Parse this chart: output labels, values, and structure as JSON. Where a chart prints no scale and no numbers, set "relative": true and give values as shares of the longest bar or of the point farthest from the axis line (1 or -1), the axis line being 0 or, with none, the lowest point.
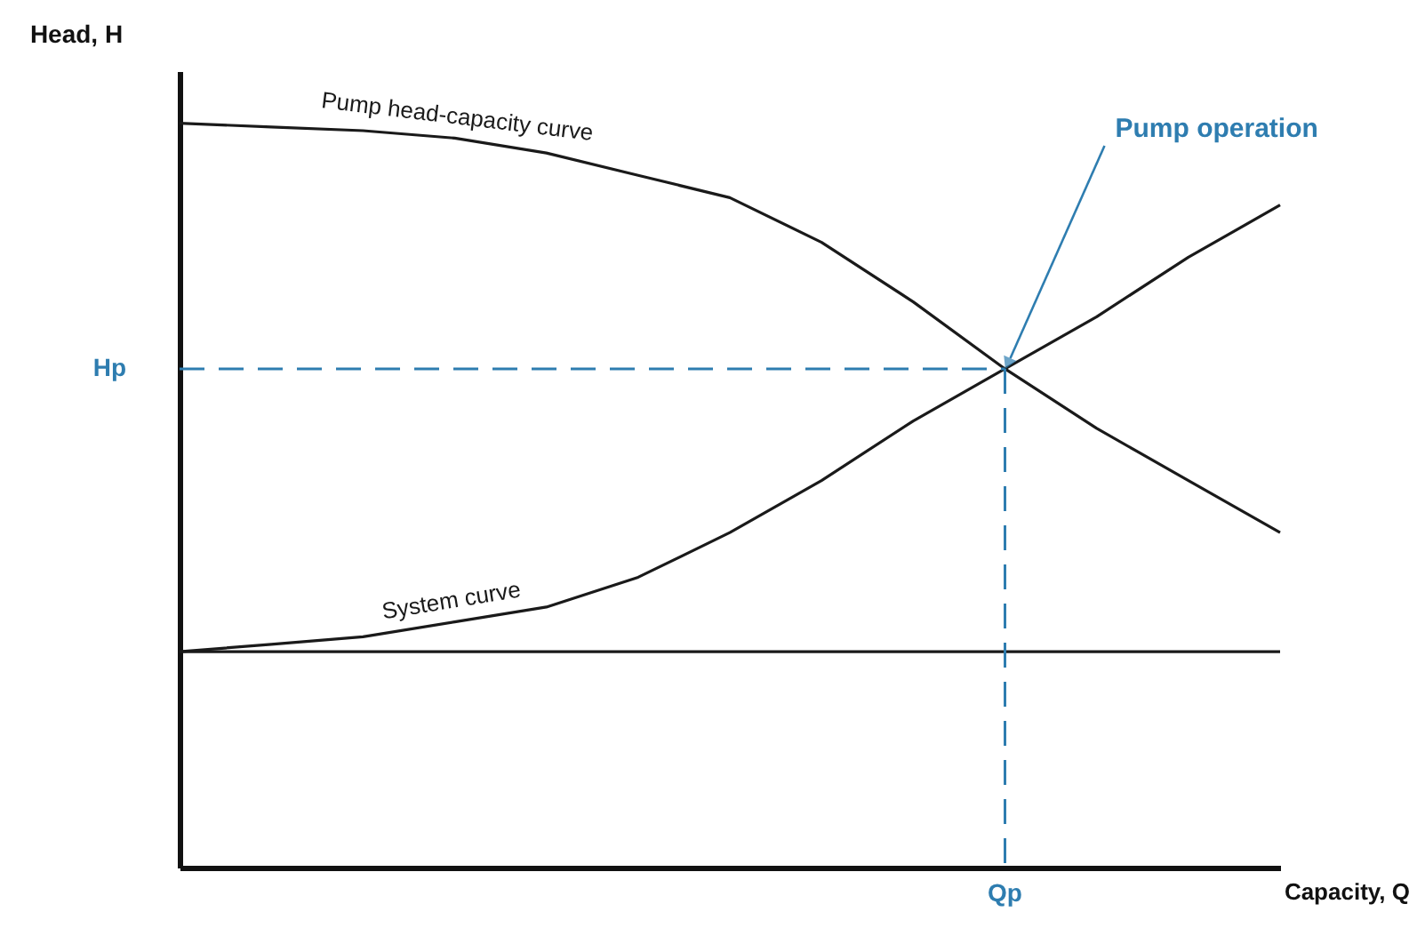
{
  "chart_data": {
    "type": "line",
    "relative": true,
    "xlabel": "Capacity, Q",
    "ylabel": "Head, H",
    "categories": [
      null,
      null,
      null,
      null,
      null,
      null,
      null,
      null,
      null,
      null,
      null,
      null,
      null
    ],
    "series": [
      {
        "name": "Pump head-capacity curve",
        "color": "#1a1a1a",
        "values": [
          1,
          0.995,
          0.99,
          0.98,
          0.96,
          0.93,
          0.9,
          0.84,
          0.76,
          0.67,
          0.59,
          0.52,
          0.45
        ]
      },
      {
        "name": "System curve",
        "color": "#1a1a1a",
        "values": [
          0.29,
          0.3,
          0.31,
          0.33,
          0.35,
          0.39,
          0.45,
          0.52,
          0.6,
          0.67,
          0.74,
          0.82,
          0.89
        ]
      },
      {
        "color": "#1a1a1a",
        "values": [
          0.29,
          0.29,
          0.29,
          0.29,
          0.29,
          0.29,
          0.29,
          0.29,
          0.29,
          0.29,
          0.29,
          0.29,
          0.29
        ]
      }
    ],
    "ref_lines": [
      {
        "axis": "y",
        "value": 0.67,
        "label": "Hp",
        "color": "#2e7db0",
        "line_style": "dashed"
      }
    ],
    "annotations": [
      "Pump operation",
      "Qp"
    ],
    "grid": false
  }
}
